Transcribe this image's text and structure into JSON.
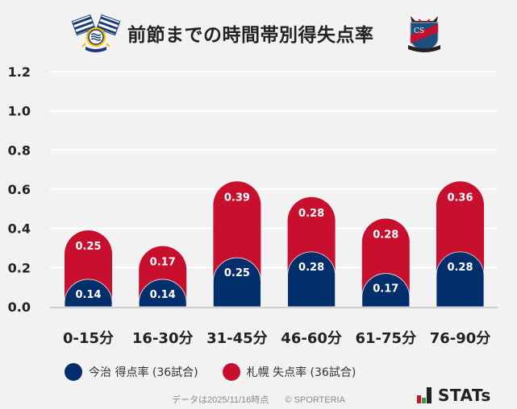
{
  "header": {
    "title": "前節までの時間帯別得失点率",
    "home_logo": "imabari-crest-icon",
    "away_logo": "consadole-sapporo-crest-icon"
  },
  "colors": {
    "home": "#002f6c",
    "away": "#c8102e",
    "background": "#f2f2f2",
    "grid": "#ffffff",
    "baseline": "#cccccc",
    "axis_text": "#222222"
  },
  "legend": [
    {
      "label": "今治 得点率 (36試合)",
      "color": "#002f6c"
    },
    {
      "label": "札幌 失点率 (36試合)",
      "color": "#c8102e"
    }
  ],
  "footer": {
    "note": "データは2025/11/16時点",
    "copyright": "© SPORTERIA",
    "brand": "STATs",
    "brand_icon": "stats-bar-logo-icon"
  },
  "chart_data": {
    "type": "bar",
    "stacked": true,
    "title": "前節までの時間帯別得失点率",
    "xlabel": "",
    "ylabel": "",
    "categories": [
      "0-15分",
      "16-30分",
      "31-45分",
      "46-60分",
      "61-75分",
      "76-90分"
    ],
    "series": [
      {
        "name": "今治 得点率 (36試合)",
        "color": "#002f6c",
        "values": [
          0.14,
          0.14,
          0.25,
          0.28,
          0.17,
          0.28
        ]
      },
      {
        "name": "札幌 失点率 (36試合)",
        "color": "#c8102e",
        "values": [
          0.25,
          0.17,
          0.39,
          0.28,
          0.28,
          0.36
        ]
      }
    ],
    "ylim": [
      0,
      1.2
    ],
    "yticks": [
      "0.0",
      "0.2",
      "0.4",
      "0.6",
      "0.8",
      "1.0",
      "1.2"
    ],
    "grid": true,
    "legend_position": "bottom",
    "data_labels": true
  }
}
